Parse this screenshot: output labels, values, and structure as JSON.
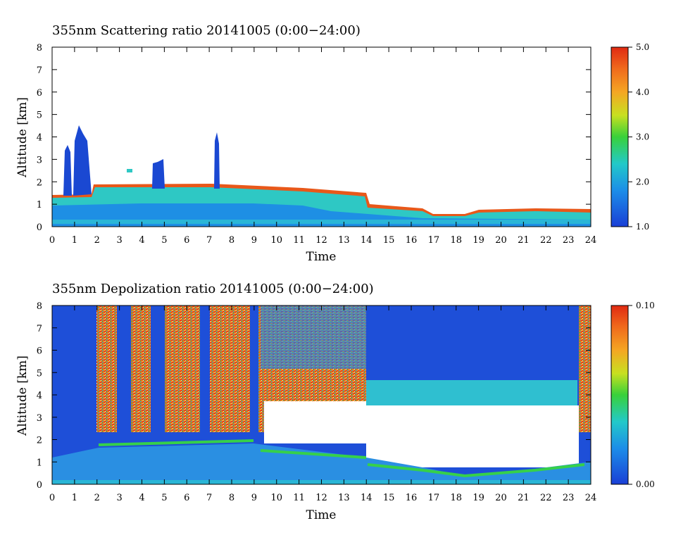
{
  "chart_data": [
    {
      "type": "heatmap",
      "title": "355nm Scattering ratio  20141005 (0:00−24:00)",
      "xlabel": "Time",
      "ylabel": "Altitude [km]",
      "xlim": [
        0,
        24
      ],
      "ylim": [
        0,
        8
      ],
      "x_ticks": [
        "0",
        "1",
        "2",
        "3",
        "4",
        "5",
        "6",
        "7",
        "8",
        "9",
        "10",
        "11",
        "12",
        "13",
        "14",
        "15",
        "16",
        "17",
        "18",
        "19",
        "20",
        "21",
        "22",
        "23",
        "24"
      ],
      "y_ticks": [
        "0",
        "1",
        "2",
        "3",
        "4",
        "5",
        "6",
        "7",
        "8"
      ],
      "colorbar": {
        "min": 1.0,
        "max": 5.0,
        "tick_labels": [
          "1.0",
          "2.0",
          "3.0",
          "4.0",
          "5.0"
        ]
      },
      "features": [
        {
          "name": "boundary layer",
          "time_range": [
            0,
            24
          ],
          "altitude_top_km": [
            1.3,
            1.8,
            1.6,
            1.5,
            0.8,
            0.5,
            0.6,
            0.75
          ]
        },
        {
          "name": "cloud columns",
          "times": [
            0.7,
            1.3,
            4.8,
            7.3
          ],
          "tops_km": [
            3.5,
            4.4,
            2.9,
            4.1
          ]
        }
      ]
    },
    {
      "type": "heatmap",
      "title": "355nm Depolization ratio  20141005 (0:00−24:00)",
      "xlabel": "Time",
      "ylabel": "Altitude [km]",
      "xlim": [
        0,
        24
      ],
      "ylim": [
        0,
        8
      ],
      "x_ticks": [
        "0",
        "1",
        "2",
        "3",
        "4",
        "5",
        "6",
        "7",
        "8",
        "9",
        "10",
        "11",
        "12",
        "13",
        "14",
        "15",
        "16",
        "17",
        "18",
        "19",
        "20",
        "21",
        "22",
        "23",
        "24"
      ],
      "y_ticks": [
        "0",
        "1",
        "2",
        "3",
        "4",
        "5",
        "6",
        "7",
        "8"
      ],
      "colorbar": {
        "min": 0.0,
        "max": 0.1,
        "tick_labels": [
          "0.00",
          "0.10"
        ]
      },
      "features": [
        {
          "name": "high depolarization noise",
          "time_range": [
            2.0,
            14.0
          ],
          "altitude_km": [
            2.5,
            8.0
          ]
        },
        {
          "name": "no-data region",
          "time_range": [
            14.0,
            23.5
          ],
          "altitude_km": [
            0.8,
            3.6
          ]
        }
      ]
    }
  ]
}
